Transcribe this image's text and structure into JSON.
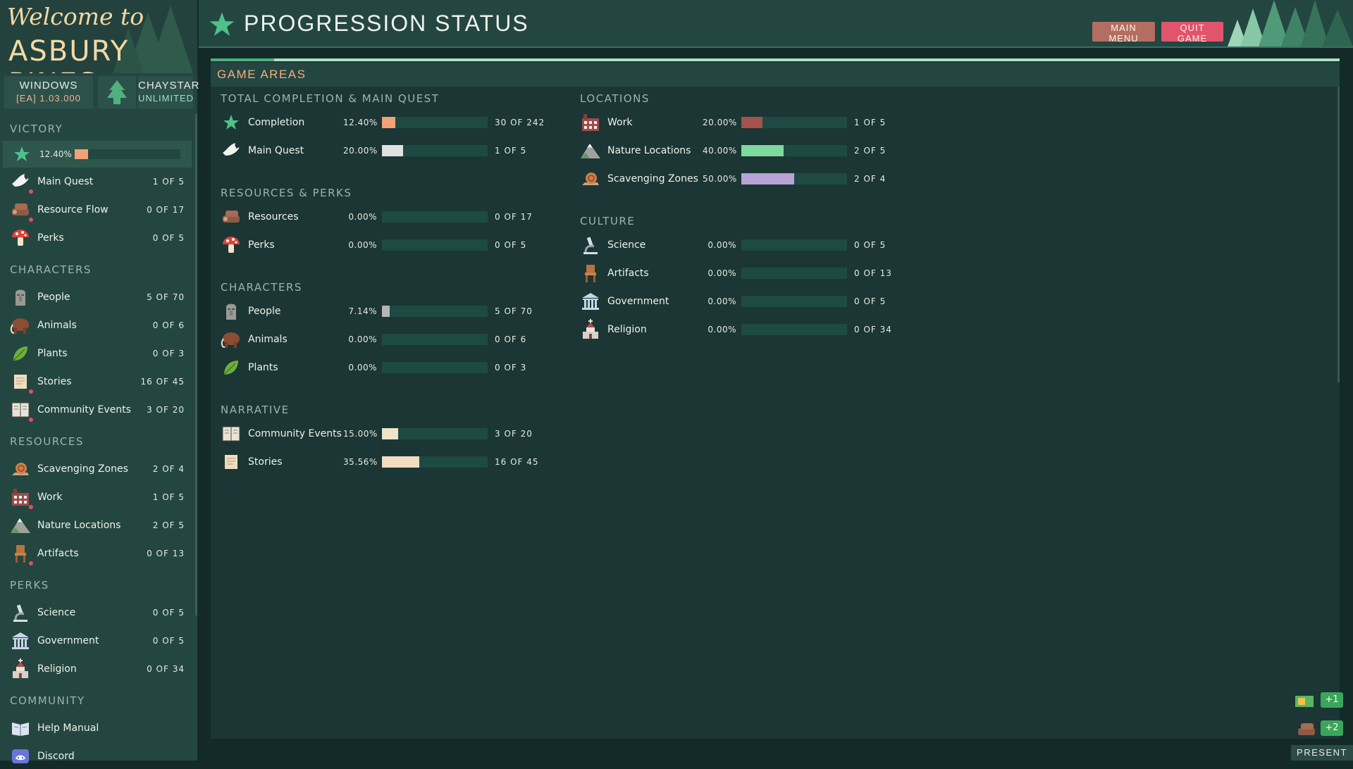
{
  "logo": {
    "line1": "Welcome to",
    "line2": "ASBURY PINES"
  },
  "version": {
    "platform": "WINDOWS",
    "build": "[EA] 1.03.000",
    "user": "CHAYSTAR",
    "edition": "UNLIMITED"
  },
  "sidebar": {
    "victory": {
      "heading": "VICTORY",
      "percent_label": "12.40%",
      "percent": 12.4
    },
    "groups": [
      {
        "heading": "",
        "items": [
          {
            "label": "Main Quest",
            "count": "1 OF 5",
            "icon": "dove-icon",
            "new": true
          },
          {
            "label": "Resource Flow",
            "count": "0 OF 17",
            "icon": "logs-icon",
            "new": true
          },
          {
            "label": "Perks",
            "count": "0 OF 5",
            "icon": "mushroom-icon",
            "new": false
          }
        ]
      },
      {
        "heading": "CHARACTERS",
        "items": [
          {
            "label": "People",
            "count": "5 OF 70",
            "icon": "moai-icon",
            "new": false
          },
          {
            "label": "Animals",
            "count": "0 OF 6",
            "icon": "mammoth-icon",
            "new": false
          },
          {
            "label": "Plants",
            "count": "0 OF 3",
            "icon": "leaf-icon",
            "new": false
          },
          {
            "label": "Stories",
            "count": "16 OF 45",
            "icon": "scroll-icon",
            "new": true
          },
          {
            "label": "Community Events",
            "count": "3 OF 20",
            "icon": "book-icon",
            "new": true
          }
        ]
      },
      {
        "heading": "RESOURCES",
        "items": [
          {
            "label": "Scavenging Zones",
            "count": "2 OF 4",
            "icon": "snail-icon",
            "new": false
          },
          {
            "label": "Work",
            "count": "1 OF 5",
            "icon": "factory-icon",
            "new": true
          },
          {
            "label": "Nature Locations",
            "count": "2 OF 5",
            "icon": "mountain-icon",
            "new": false
          },
          {
            "label": "Artifacts",
            "count": "0 OF 13",
            "icon": "chair-icon",
            "new": true
          }
        ]
      },
      {
        "heading": "PERKS",
        "items": [
          {
            "label": "Science",
            "count": "0 OF 5",
            "icon": "microscope-icon",
            "new": false
          },
          {
            "label": "Government",
            "count": "0 OF 5",
            "icon": "capitol-icon",
            "new": false
          },
          {
            "label": "Religion",
            "count": "0 OF 34",
            "icon": "church-icon",
            "new": false
          }
        ]
      },
      {
        "heading": "COMMUNITY",
        "items": [
          {
            "label": "Help Manual",
            "count": "",
            "icon": "open-book-icon",
            "new": false
          },
          {
            "label": "Discord",
            "count": "",
            "icon": "discord-icon",
            "new": false
          }
        ]
      }
    ]
  },
  "header": {
    "title": "PROGRESSION STATUS",
    "main_menu": "MAIN MENU",
    "quit_game": "QUIT GAME"
  },
  "panel": {
    "title": "GAME AREAS",
    "columns": [
      [
        {
          "heading": "TOTAL COMPLETION & MAIN QUEST",
          "rows": [
            {
              "label": "Completion",
              "pct": "12.40%",
              "value": 12.4,
              "count": "30 OF 242",
              "icon": "star-icon",
              "color": "#f3a078"
            },
            {
              "label": "Main Quest",
              "pct": "20.00%",
              "value": 20,
              "count": "1 OF 5",
              "icon": "dove-icon",
              "color": "#dfe3df"
            }
          ]
        },
        {
          "heading": "RESOURCES & PERKS",
          "rows": [
            {
              "label": "Resources",
              "pct": "0.00%",
              "value": 0,
              "count": "0 OF 17",
              "icon": "logs-icon",
              "color": "#cccccc"
            },
            {
              "label": "Perks",
              "pct": "0.00%",
              "value": 0,
              "count": "0 OF 5",
              "icon": "mushroom-icon",
              "color": "#cccccc"
            }
          ]
        },
        {
          "heading": "CHARACTERS",
          "rows": [
            {
              "label": "People",
              "pct": "7.14%",
              "value": 7.14,
              "count": "5 OF 70",
              "icon": "moai-icon",
              "color": "#b5b5b5"
            },
            {
              "label": "Animals",
              "pct": "0.00%",
              "value": 0,
              "count": "0 OF 6",
              "icon": "mammoth-icon",
              "color": "#cccccc"
            },
            {
              "label": "Plants",
              "pct": "0.00%",
              "value": 0,
              "count": "0 OF 3",
              "icon": "leaf-icon",
              "color": "#cccccc"
            }
          ]
        },
        {
          "heading": "NARRATIVE",
          "rows": [
            {
              "label": "Community Events",
              "pct": "15.00%",
              "value": 15,
              "count": "3 OF 20",
              "icon": "book-icon",
              "color": "#efe3c8"
            },
            {
              "label": "Stories",
              "pct": "35.56%",
              "value": 35.56,
              "count": "16 OF 45",
              "icon": "scroll-icon",
              "color": "#f2dcc2"
            }
          ]
        }
      ],
      [
        {
          "heading": "LOCATIONS",
          "rows": [
            {
              "label": "Work",
              "pct": "20.00%",
              "value": 20,
              "count": "1 OF 5",
              "icon": "factory-icon",
              "color": "#a5514e"
            },
            {
              "label": "Nature Locations",
              "pct": "40.00%",
              "value": 40,
              "count": "2 OF 5",
              "icon": "mountain-icon",
              "color": "#7ed99d"
            },
            {
              "label": "Scavenging Zones",
              "pct": "50.00%",
              "value": 50,
              "count": "2 OF 4",
              "icon": "snail-icon",
              "color": "#b8a3d6"
            }
          ]
        },
        {
          "heading": "CULTURE",
          "rows": [
            {
              "label": "Science",
              "pct": "0.00%",
              "value": 0,
              "count": "0 OF 5",
              "icon": "microscope-icon",
              "color": "#cccccc"
            },
            {
              "label": "Artifacts",
              "pct": "0.00%",
              "value": 0,
              "count": "0 OF 13",
              "icon": "chair-icon",
              "color": "#cccccc"
            },
            {
              "label": "Government",
              "pct": "0.00%",
              "value": 0,
              "count": "0 OF 5",
              "icon": "capitol-icon",
              "color": "#cccccc"
            },
            {
              "label": "Religion",
              "pct": "0.00%",
              "value": 0,
              "count": "0 OF 34",
              "icon": "church-icon",
              "color": "#cccccc"
            }
          ]
        }
      ]
    ]
  },
  "notifications": [
    {
      "label": "+1",
      "icon": "money-icon"
    },
    {
      "label": "+2",
      "icon": "logs-icon"
    }
  ],
  "present_label": "PRESENT"
}
